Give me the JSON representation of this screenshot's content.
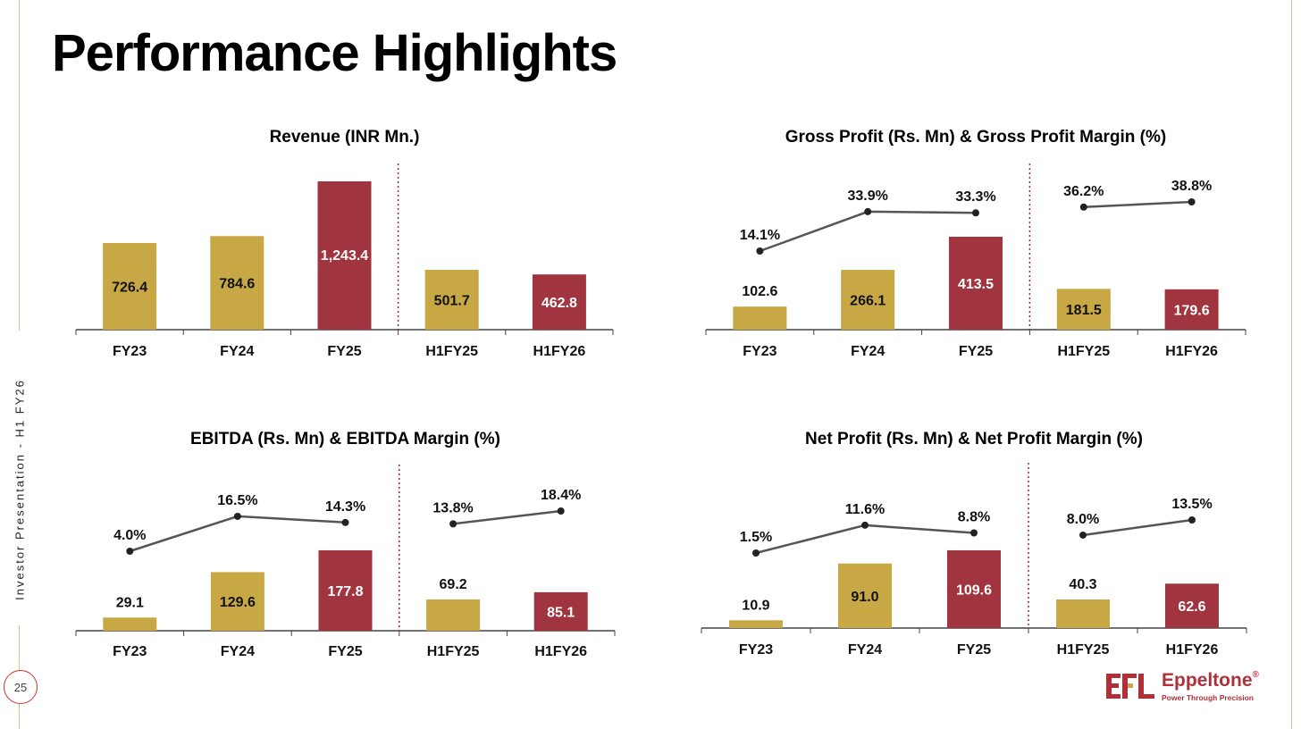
{
  "title": "Performance Highlights",
  "footer": {
    "side_text": "Investor Presentation - H1 FY26",
    "page_number": "25"
  },
  "logo": {
    "name": "Eppeltone",
    "registered": "®",
    "tagline": "Power Through Precision"
  },
  "colors": {
    "fy_bar": "#c8a845",
    "highlight_bar": "#a0343f",
    "margin_line": "#555555",
    "margin_marker": "#222222",
    "divider": "#9b2c2c",
    "axis": "#444444"
  },
  "chart_data": [
    {
      "type": "bar",
      "title": "Revenue (INR Mn.)",
      "categories": [
        "FY23",
        "FY24",
        "FY25",
        "H1FY25",
        "H1FY26"
      ],
      "values": [
        726.4,
        784.6,
        1243.4,
        501.7,
        462.8
      ],
      "value_labels": [
        "726.4",
        "784.6",
        "1,243.4",
        "501.7",
        "462.8"
      ],
      "bar_colors": [
        "fy_bar",
        "fy_bar",
        "highlight_bar",
        "fy_bar",
        "highlight_bar"
      ],
      "divider_after_index": 2,
      "ylim": [
        0,
        1400
      ]
    },
    {
      "type": "bar",
      "title": "Gross Profit (Rs. Mn) & Gross Profit Margin (%)",
      "categories": [
        "FY23",
        "FY24",
        "FY25",
        "H1FY25",
        "H1FY26"
      ],
      "values": [
        102.6,
        266.1,
        413.5,
        181.5,
        179.6
      ],
      "value_labels": [
        "102.6",
        "266.1",
        "413.5",
        "181.5",
        "179.6"
      ],
      "bar_colors": [
        "fy_bar",
        "fy_bar",
        "highlight_bar",
        "fy_bar",
        "highlight_bar"
      ],
      "margin_values": [
        14.1,
        33.9,
        33.3,
        36.2,
        38.8
      ],
      "margin_labels": [
        "14.1%",
        "33.9%",
        "33.3%",
        "36.2%",
        "38.8%"
      ],
      "divider_after_index": 2,
      "ylim": [
        0,
        1000
      ],
      "margin_ylim": [
        -30,
        45
      ]
    },
    {
      "type": "bar",
      "title": "EBITDA (Rs. Mn) & EBITDA Margin (%)",
      "categories": [
        "FY23",
        "FY24",
        "FY25",
        "H1FY25",
        "H1FY26"
      ],
      "values": [
        29.1,
        129.6,
        177.8,
        69.2,
        85.1
      ],
      "value_labels": [
        "29.1",
        "129.6",
        "177.8",
        "69.2",
        "85.1"
      ],
      "bar_colors": [
        "fy_bar",
        "fy_bar",
        "highlight_bar",
        "fy_bar",
        "highlight_bar"
      ],
      "margin_values": [
        4.0,
        16.5,
        14.3,
        13.8,
        18.4
      ],
      "margin_labels": [
        "4.0%",
        "16.5%",
        "14.3%",
        "13.8%",
        "18.4%"
      ],
      "divider_after_index": 2,
      "ylim": [
        0,
        450
      ],
      "margin_ylim": [
        -25,
        25
      ]
    },
    {
      "type": "bar",
      "title": "Net Profit (Rs. Mn) & Net Profit Margin (%)",
      "categories": [
        "FY23",
        "FY24",
        "FY25",
        "H1FY25",
        "H1FY26"
      ],
      "values": [
        10.9,
        91.0,
        109.6,
        40.3,
        62.6
      ],
      "value_labels": [
        "10.9",
        "91.0",
        "109.6",
        "40.3",
        "62.6"
      ],
      "bar_colors": [
        "fy_bar",
        "fy_bar",
        "highlight_bar",
        "fy_bar",
        "highlight_bar"
      ],
      "margin_values": [
        1.5,
        11.6,
        8.8,
        8.0,
        13.5
      ],
      "margin_labels": [
        "1.5%",
        "11.6%",
        "8.8%",
        "8.0%",
        "13.5%"
      ],
      "divider_after_index": 2,
      "ylim": [
        0,
        280
      ],
      "margin_ylim": [
        -16,
        17
      ]
    }
  ]
}
